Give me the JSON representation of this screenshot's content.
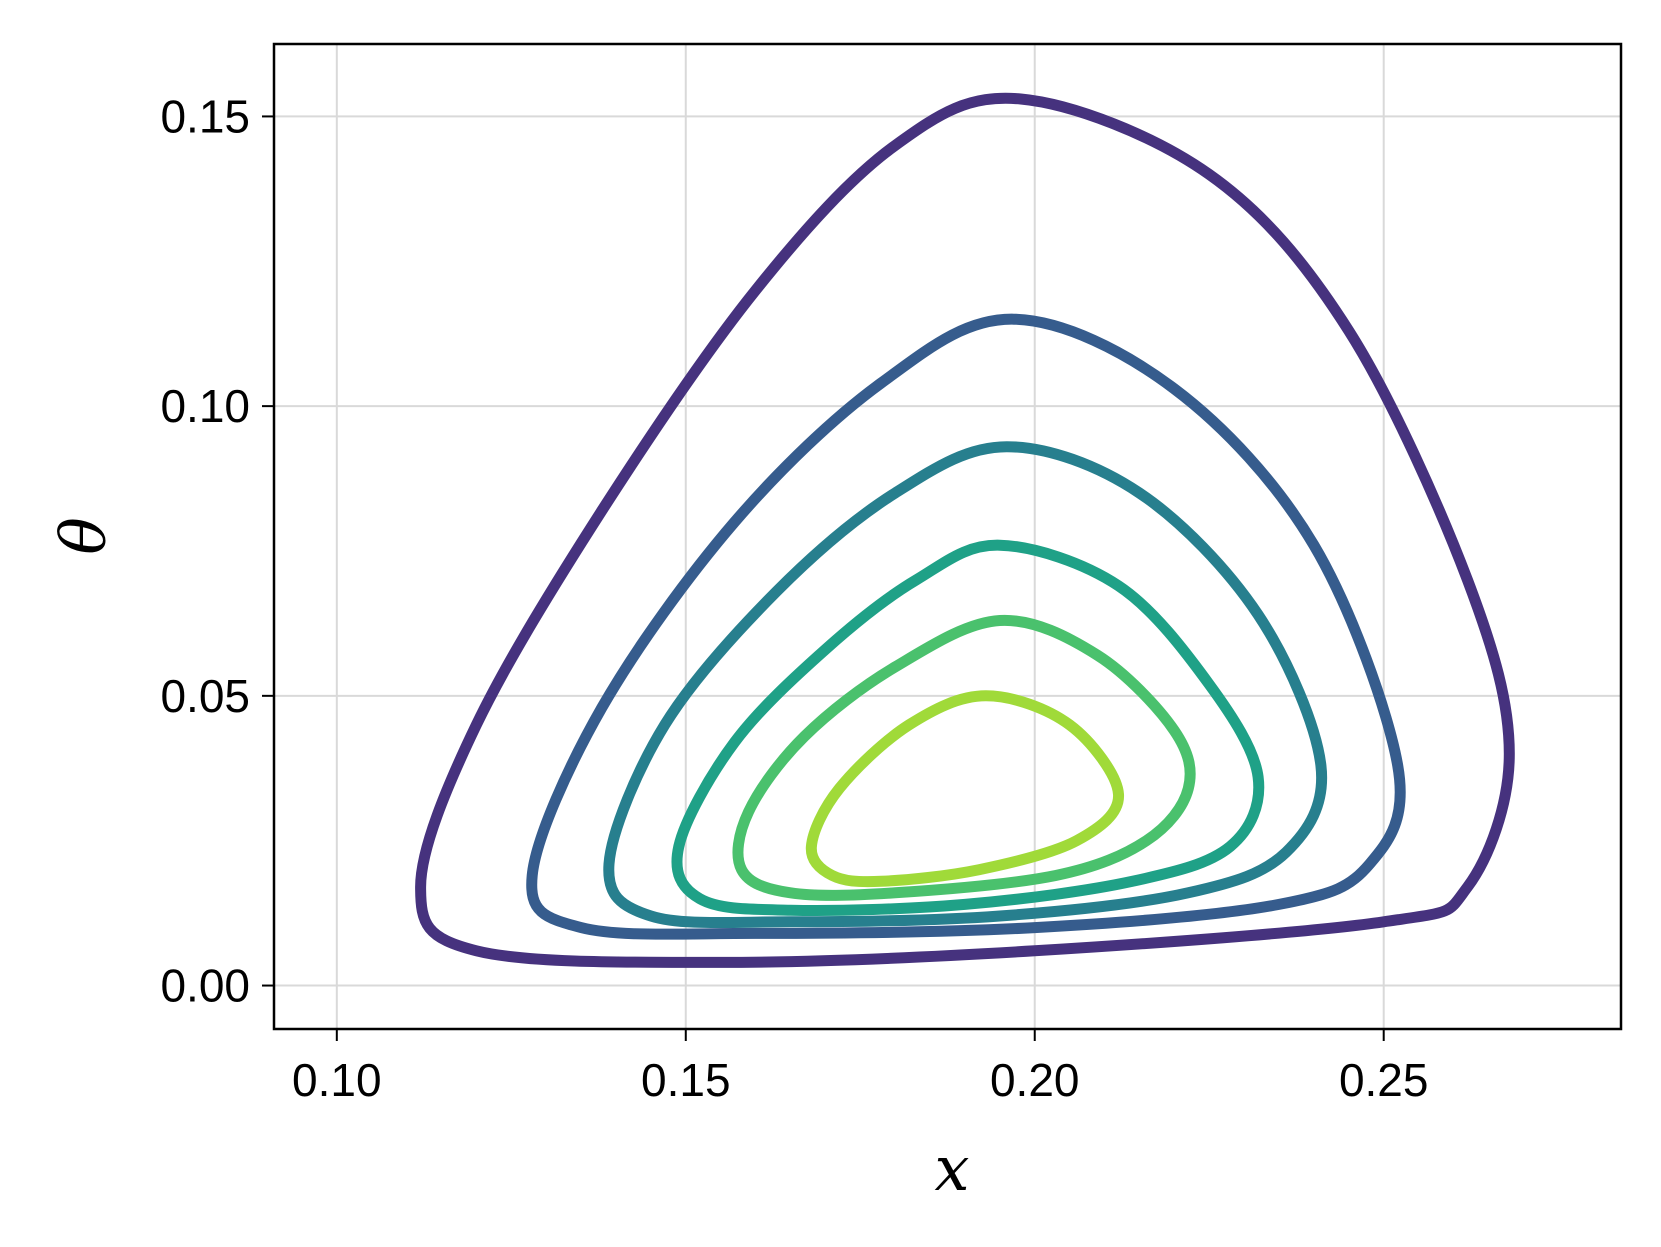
{
  "chart_data": {
    "type": "line",
    "xlabel": "x",
    "ylabel": "θ",
    "xlim": [
      0.091,
      0.284
    ],
    "ylim": [
      -0.0075,
      0.1625
    ],
    "xticks": [
      0.1,
      0.15,
      0.2,
      0.25
    ],
    "xtick_labels": [
      "0.10",
      "0.15",
      "0.20",
      "0.25"
    ],
    "yticks": [
      0.0,
      0.05,
      0.1,
      0.15
    ],
    "ytick_labels": [
      "0.00",
      "0.05",
      "0.10",
      "0.15"
    ],
    "grid": true,
    "legend": "none",
    "series": [
      {
        "color": "#46327e",
        "points": [
          [
            0.198,
            0.153
          ],
          [
            0.225,
            0.14
          ],
          [
            0.245,
            0.113
          ],
          [
            0.262,
            0.07
          ],
          [
            0.268,
            0.04
          ],
          [
            0.262,
            0.017
          ],
          [
            0.25,
            0.011
          ],
          [
            0.2,
            0.006
          ],
          [
            0.155,
            0.004
          ],
          [
            0.12,
            0.006
          ],
          [
            0.112,
            0.017
          ],
          [
            0.12,
            0.045
          ],
          [
            0.138,
            0.082
          ],
          [
            0.16,
            0.12
          ],
          [
            0.18,
            0.145
          ]
        ]
      },
      {
        "color": "#365c8d",
        "points": [
          [
            0.197,
            0.115
          ],
          [
            0.22,
            0.103
          ],
          [
            0.24,
            0.076
          ],
          [
            0.252,
            0.038
          ],
          [
            0.248,
            0.021
          ],
          [
            0.235,
            0.014
          ],
          [
            0.2,
            0.01
          ],
          [
            0.16,
            0.009
          ],
          [
            0.135,
            0.01
          ],
          [
            0.128,
            0.019
          ],
          [
            0.138,
            0.048
          ],
          [
            0.157,
            0.08
          ],
          [
            0.178,
            0.104
          ]
        ]
      },
      {
        "color": "#277f8e",
        "points": [
          [
            0.196,
            0.093
          ],
          [
            0.215,
            0.085
          ],
          [
            0.232,
            0.064
          ],
          [
            0.241,
            0.038
          ],
          [
            0.236,
            0.023
          ],
          [
            0.222,
            0.016
          ],
          [
            0.195,
            0.012
          ],
          [
            0.165,
            0.011
          ],
          [
            0.145,
            0.012
          ],
          [
            0.139,
            0.021
          ],
          [
            0.147,
            0.045
          ],
          [
            0.163,
            0.068
          ],
          [
            0.18,
            0.085
          ]
        ]
      },
      {
        "color": "#1fa187",
        "points": [
          [
            0.195,
            0.076
          ],
          [
            0.212,
            0.069
          ],
          [
            0.225,
            0.052
          ],
          [
            0.232,
            0.036
          ],
          [
            0.228,
            0.024
          ],
          [
            0.214,
            0.018
          ],
          [
            0.19,
            0.014
          ],
          [
            0.165,
            0.013
          ],
          [
            0.152,
            0.015
          ],
          [
            0.149,
            0.024
          ],
          [
            0.157,
            0.042
          ],
          [
            0.17,
            0.058
          ],
          [
            0.183,
            0.07
          ]
        ]
      },
      {
        "color": "#4ac16d",
        "points": [
          [
            0.195,
            0.063
          ],
          [
            0.209,
            0.057
          ],
          [
            0.22,
            0.044
          ],
          [
            0.222,
            0.034
          ],
          [
            0.216,
            0.025
          ],
          [
            0.203,
            0.019
          ],
          [
            0.18,
            0.016
          ],
          [
            0.165,
            0.016
          ],
          [
            0.158,
            0.02
          ],
          [
            0.159,
            0.03
          ],
          [
            0.167,
            0.043
          ],
          [
            0.18,
            0.055
          ]
        ]
      },
      {
        "color": "#a0da39",
        "points": [
          [
            0.193,
            0.05
          ],
          [
            0.205,
            0.045
          ],
          [
            0.212,
            0.033
          ],
          [
            0.206,
            0.025
          ],
          [
            0.192,
            0.02
          ],
          [
            0.178,
            0.018
          ],
          [
            0.171,
            0.019
          ],
          [
            0.168,
            0.024
          ],
          [
            0.172,
            0.034
          ],
          [
            0.182,
            0.045
          ]
        ]
      }
    ]
  }
}
